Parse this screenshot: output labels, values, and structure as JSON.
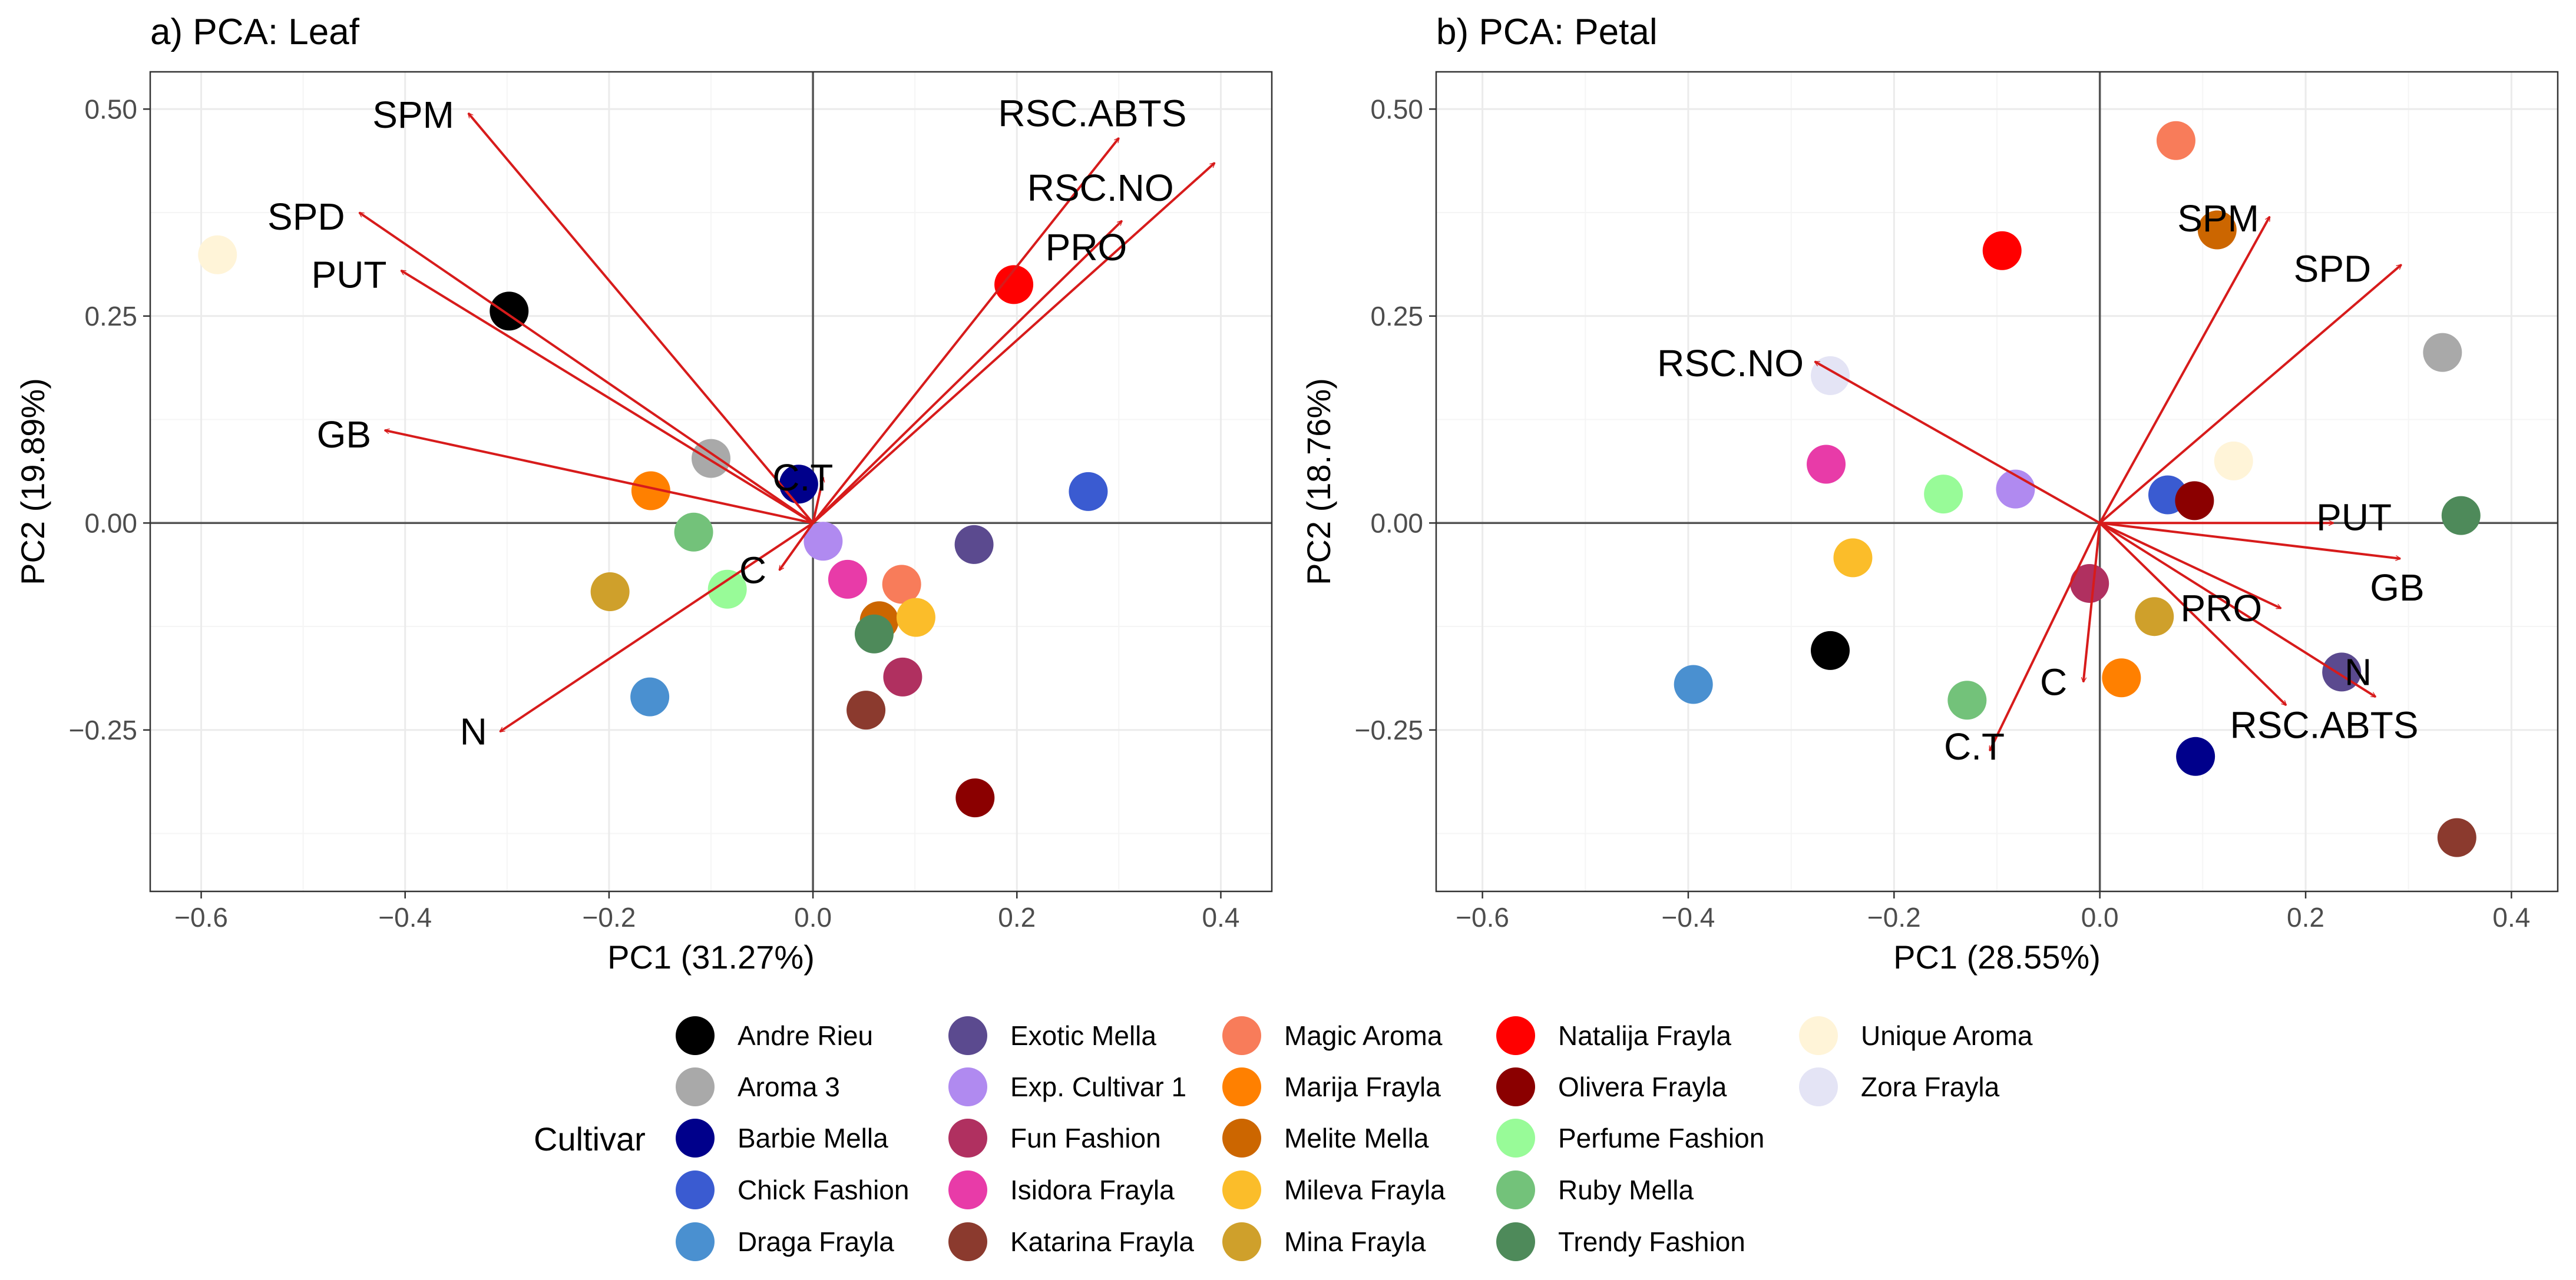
{
  "chart_data": [
    {
      "type": "scatter",
      "subtype": "pca-biplot",
      "title": "a) PCA: Leaf",
      "xlabel": "PC1 (31.27%)",
      "ylabel": "PC2 (19.89%)",
      "xlim": [
        -0.65,
        0.45
      ],
      "ylim": [
        -0.445,
        0.545
      ],
      "xticks": [
        -0.6,
        -0.4,
        -0.2,
        0.0,
        0.2,
        0.4
      ],
      "yticks": [
        -0.25,
        0.0,
        0.25,
        0.5
      ],
      "xtick_labels": [
        "−0.6",
        "−0.4",
        "−0.2",
        "0.0",
        "0.2",
        "0.4"
      ],
      "ytick_labels": [
        "−0.25",
        "0.00",
        "0.25",
        "0.50"
      ],
      "grid": true,
      "points": [
        {
          "cultivar": "Andre Rieu",
          "x": -0.298,
          "y": 0.256
        },
        {
          "cultivar": "Aroma 3",
          "x": -0.1,
          "y": 0.078
        },
        {
          "cultivar": "Barbie Mella",
          "x": -0.014,
          "y": 0.047
        },
        {
          "cultivar": "Chick Fashion",
          "x": 0.27,
          "y": 0.038
        },
        {
          "cultivar": "Draga Frayla",
          "x": -0.16,
          "y": -0.21
        },
        {
          "cultivar": "Exotic Mella",
          "x": 0.158,
          "y": -0.026
        },
        {
          "cultivar": "Exp. Cultivar 1",
          "x": 0.01,
          "y": -0.022
        },
        {
          "cultivar": "Fun Fashion",
          "x": 0.088,
          "y": -0.186
        },
        {
          "cultivar": "Isidora Frayla",
          "x": 0.034,
          "y": -0.068
        },
        {
          "cultivar": "Katarina Frayla",
          "x": 0.052,
          "y": -0.226
        },
        {
          "cultivar": "Magic Aroma",
          "x": 0.087,
          "y": -0.074
        },
        {
          "cultivar": "Marija Frayla",
          "x": -0.159,
          "y": 0.039
        },
        {
          "cultivar": "Melite Mella",
          "x": 0.065,
          "y": -0.118
        },
        {
          "cultivar": "Mileva Frayla",
          "x": 0.101,
          "y": -0.114
        },
        {
          "cultivar": "Mina Frayla",
          "x": -0.199,
          "y": -0.083
        },
        {
          "cultivar": "Natalija Frayla",
          "x": 0.197,
          "y": 0.288
        },
        {
          "cultivar": "Olivera Frayla",
          "x": 0.159,
          "y": -0.332
        },
        {
          "cultivar": "Perfume Fashion",
          "x": -0.084,
          "y": -0.08
        },
        {
          "cultivar": "Ruby Mella",
          "x": -0.117,
          "y": -0.011
        },
        {
          "cultivar": "Trendy Fashion",
          "x": 0.06,
          "y": -0.134
        },
        {
          "cultivar": "Unique Aroma",
          "x": -0.584,
          "y": 0.324
        }
      ],
      "loadings": [
        {
          "variable": "SPM",
          "x": -0.338,
          "y": 0.495,
          "label_x": -0.392,
          "label_y": 0.493
        },
        {
          "variable": "SPD",
          "x": -0.445,
          "y": 0.375,
          "label_x": -0.497,
          "label_y": 0.37
        },
        {
          "variable": "PUT",
          "x": -0.404,
          "y": 0.305,
          "label_x": -0.455,
          "label_y": 0.3
        },
        {
          "variable": "GB",
          "x": -0.42,
          "y": 0.112,
          "label_x": -0.46,
          "label_y": 0.107
        },
        {
          "variable": "N",
          "x": -0.307,
          "y": -0.252,
          "label_x": -0.333,
          "label_y": -0.252
        },
        {
          "variable": "C",
          "x": -0.033,
          "y": -0.057,
          "label_x": -0.059,
          "label_y": -0.057
        },
        {
          "variable": "C.T",
          "x": 0.01,
          "y": 0.055,
          "label_x": -0.01,
          "label_y": 0.055
        },
        {
          "variable": "RSC.ABTS",
          "x": 0.3,
          "y": 0.465,
          "label_x": 0.274,
          "label_y": 0.495
        },
        {
          "variable": "RSC.NO",
          "x": 0.394,
          "y": 0.435,
          "label_x": 0.282,
          "label_y": 0.405
        },
        {
          "variable": "PRO",
          "x": 0.303,
          "y": 0.365,
          "label_x": 0.268,
          "label_y": 0.333
        }
      ]
    },
    {
      "type": "scatter",
      "subtype": "pca-biplot",
      "title": "b) PCA: Petal",
      "xlabel": "PC1 (28.55%)",
      "ylabel": "PC2 (18.76%)",
      "xlim": [
        -0.645,
        0.445
      ],
      "ylim": [
        -0.445,
        0.545
      ],
      "xticks": [
        -0.6,
        -0.4,
        -0.2,
        0.0,
        0.2,
        0.4
      ],
      "yticks": [
        -0.25,
        0.0,
        0.25,
        0.5
      ],
      "xtick_labels": [
        "−0.6",
        "−0.4",
        "−0.2",
        "0.0",
        "0.2",
        "0.4"
      ],
      "ytick_labels": [
        "−0.25",
        "0.00",
        "0.25",
        "0.50"
      ],
      "grid": true,
      "points": [
        {
          "cultivar": "Andre Rieu",
          "x": -0.262,
          "y": -0.154
        },
        {
          "cultivar": "Aroma 3",
          "x": 0.333,
          "y": 0.206
        },
        {
          "cultivar": "Barbie Mella",
          "x": 0.093,
          "y": -0.282
        },
        {
          "cultivar": "Chick Fashion",
          "x": 0.066,
          "y": 0.034
        },
        {
          "cultivar": "Draga Frayla",
          "x": -0.395,
          "y": -0.195
        },
        {
          "cultivar": "Exotic Mella",
          "x": 0.235,
          "y": -0.18
        },
        {
          "cultivar": "Exp. Cultivar 1",
          "x": -0.082,
          "y": 0.041
        },
        {
          "cultivar": "Fun Fashion",
          "x": -0.01,
          "y": -0.073
        },
        {
          "cultivar": "Isidora Frayla",
          "x": -0.266,
          "y": 0.071
        },
        {
          "cultivar": "Katarina Frayla",
          "x": 0.347,
          "y": -0.38
        },
        {
          "cultivar": "Magic Aroma",
          "x": 0.074,
          "y": 0.462
        },
        {
          "cultivar": "Marija Frayla",
          "x": 0.021,
          "y": -0.187
        },
        {
          "cultivar": "Melite Mella",
          "x": 0.114,
          "y": 0.354
        },
        {
          "cultivar": "Mileva Frayla",
          "x": -0.24,
          "y": -0.042
        },
        {
          "cultivar": "Mina Frayla",
          "x": 0.053,
          "y": -0.113
        },
        {
          "cultivar": "Natalija Frayla",
          "x": -0.095,
          "y": 0.329
        },
        {
          "cultivar": "Olivera Frayla",
          "x": 0.092,
          "y": 0.027
        },
        {
          "cultivar": "Perfume Fashion",
          "x": -0.152,
          "y": 0.035
        },
        {
          "cultivar": "Ruby Mella",
          "x": -0.129,
          "y": -0.214
        },
        {
          "cultivar": "Trendy Fashion",
          "x": 0.351,
          "y": 0.009
        },
        {
          "cultivar": "Unique Aroma",
          "x": 0.13,
          "y": 0.075
        },
        {
          "cultivar": "Zora Frayla",
          "x": -0.262,
          "y": 0.178
        }
      ],
      "loadings": [
        {
          "variable": "SPM",
          "x": 0.165,
          "y": 0.37,
          "label_x": 0.115,
          "label_y": 0.368
        },
        {
          "variable": "SPD",
          "x": 0.293,
          "y": 0.312,
          "label_x": 0.226,
          "label_y": 0.307
        },
        {
          "variable": "RSC.NO",
          "x": -0.277,
          "y": 0.195,
          "label_x": -0.359,
          "label_y": 0.193
        },
        {
          "variable": "PUT",
          "x": 0.227,
          "y": 0.0,
          "label_x": 0.247,
          "label_y": 0.007
        },
        {
          "variable": "GB",
          "x": 0.292,
          "y": -0.043,
          "label_x": 0.289,
          "label_y": -0.078
        },
        {
          "variable": "PRO",
          "x": 0.176,
          "y": -0.103,
          "label_x": 0.118,
          "label_y": -0.103
        },
        {
          "variable": "N",
          "x": 0.268,
          "y": -0.21,
          "label_x": 0.251,
          "label_y": -0.18
        },
        {
          "variable": "RSC.ABTS",
          "x": 0.181,
          "y": -0.22,
          "label_x": 0.218,
          "label_y": -0.244
        },
        {
          "variable": "C",
          "x": -0.016,
          "y": -0.192,
          "label_x": -0.045,
          "label_y": -0.192
        },
        {
          "variable": "C.T",
          "x": -0.107,
          "y": -0.275,
          "label_x": -0.122,
          "label_y": -0.27
        }
      ]
    }
  ],
  "legend": {
    "title": "Cultivar",
    "items": [
      {
        "name": "Andre Rieu",
        "color": "#000000"
      },
      {
        "name": "Aroma 3",
        "color": "#a9a9a9"
      },
      {
        "name": "Barbie Mella",
        "color": "#00008b"
      },
      {
        "name": "Chick Fashion",
        "color": "#3a5bd1"
      },
      {
        "name": "Draga Frayla",
        "color": "#4a90d0"
      },
      {
        "name": "Exotic Mella",
        "color": "#5b4a8f"
      },
      {
        "name": "Exp. Cultivar 1",
        "color": "#b08af0"
      },
      {
        "name": "Fun Fashion",
        "color": "#b03060"
      },
      {
        "name": "Isidora Frayla",
        "color": "#e83ba8"
      },
      {
        "name": "Katarina Frayla",
        "color": "#8b3a2e"
      },
      {
        "name": "Magic Aroma",
        "color": "#f87c5a"
      },
      {
        "name": "Marija Frayla",
        "color": "#ff8000"
      },
      {
        "name": "Melite Mella",
        "color": "#cc6600"
      },
      {
        "name": "Mileva Frayla",
        "color": "#fbbd2a"
      },
      {
        "name": "Mina Frayla",
        "color": "#cfa02b"
      },
      {
        "name": "Natalija Frayla",
        "color": "#ff0000"
      },
      {
        "name": "Olivera Frayla",
        "color": "#8b0000"
      },
      {
        "name": "Perfume Fashion",
        "color": "#98fb98"
      },
      {
        "name": "Ruby Mella",
        "color": "#73c27a"
      },
      {
        "name": "Trendy Fashion",
        "color": "#4e8a5a"
      },
      {
        "name": "Unique Aroma",
        "color": "#fff4d8"
      },
      {
        "name": "Zora Frayla",
        "color": "#e4e4f5"
      }
    ]
  },
  "colors": {
    "arrow": "#d71b1b",
    "zero_line": "#555555",
    "grid_major": "#ebebeb",
    "grid_minor": "#f5f5f5",
    "panel_border": "#333333"
  }
}
